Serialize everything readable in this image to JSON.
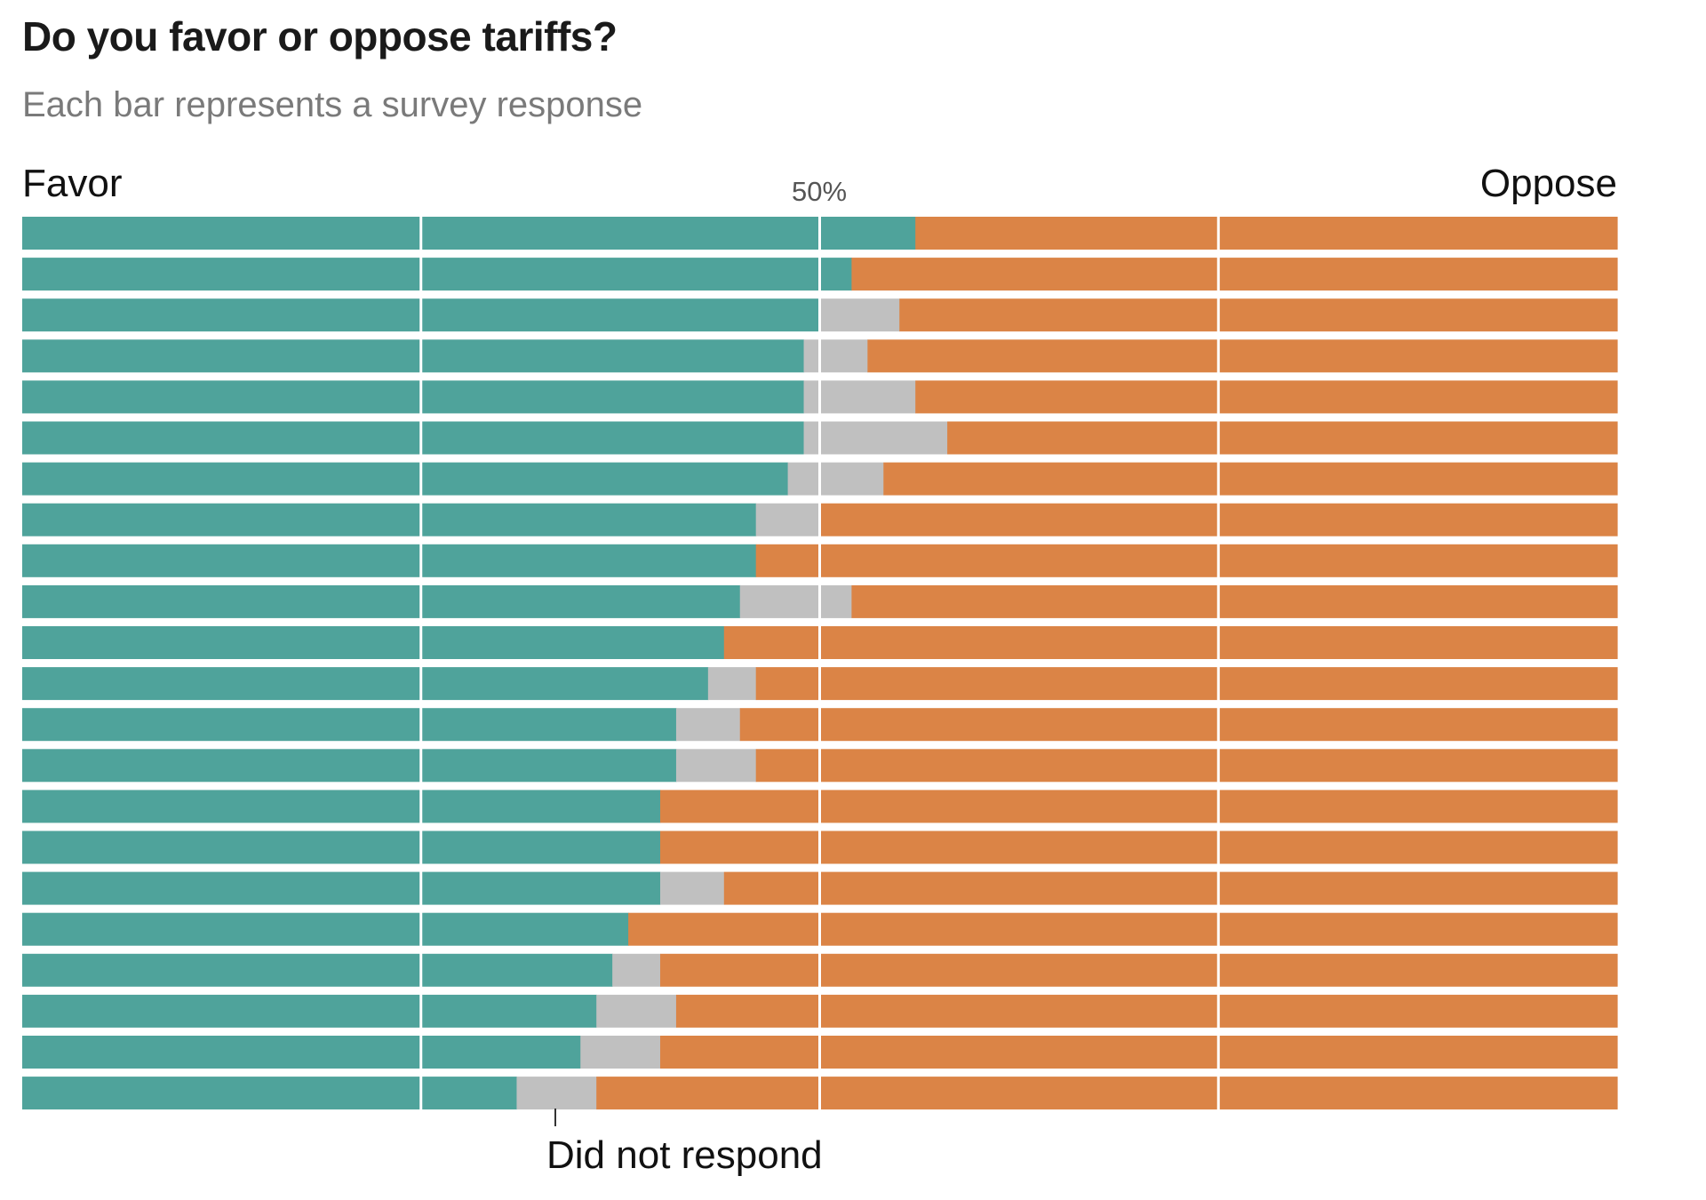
{
  "chart_data": {
    "type": "bar",
    "orientation": "horizontal-stacked-100",
    "title": "Do you favor or oppose tariffs?",
    "subtitle": "Each bar represents a survey response",
    "left_label": "Favor",
    "right_label": "Oppose",
    "gridlines": [
      25,
      50,
      75
    ],
    "tick_labels": [
      {
        "value": 50,
        "text": "50%"
      }
    ],
    "annotation": {
      "text": "Did not respond",
      "x_value": 33.5
    },
    "xlim": [
      0,
      100
    ],
    "colors": {
      "favor": "#4fa39b",
      "no_response": "#c0c0c0",
      "oppose": "#db8446",
      "gridline": "#ffffff"
    },
    "series": [
      {
        "name": "Favor",
        "values": [
          56,
          52,
          50,
          49,
          49,
          49,
          48,
          46,
          46,
          45,
          44,
          43,
          41,
          41,
          40,
          40,
          40,
          38,
          37,
          36,
          35,
          31
        ]
      },
      {
        "name": "Did not respond",
        "values": [
          0,
          0,
          5,
          4,
          7,
          9,
          6,
          4,
          0,
          7,
          0,
          3,
          4,
          5,
          0,
          0,
          4,
          0,
          3,
          5,
          5,
          5
        ]
      },
      {
        "name": "Oppose",
        "values": [
          44,
          48,
          45,
          47,
          44,
          42,
          46,
          50,
          54,
          48,
          56,
          54,
          55,
          54,
          60,
          60,
          56,
          62,
          60,
          59,
          60,
          64
        ]
      }
    ]
  }
}
